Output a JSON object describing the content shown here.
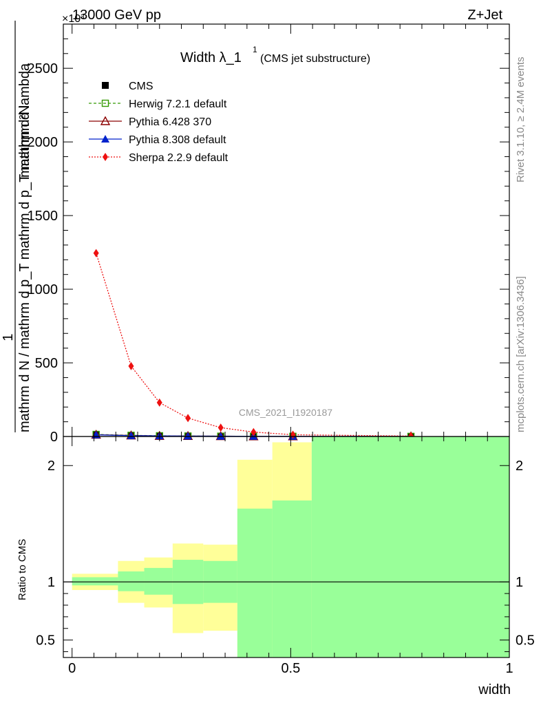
{
  "header": {
    "left": "13000 GeV pp",
    "right": "Z+Jet",
    "exponent": "×10³"
  },
  "side_text": {
    "rivet": "Rivet 3.1.10, ≥ 2.4M events",
    "mcplots": "mcplots.cern.ch [arXiv:1306.3436]"
  },
  "watermark": "CMS_2021_I1920187",
  "chart_data": [
    {
      "type": "line",
      "title": "Width λ_1",
      "title_sup": "1",
      "subtitle": "(CMS jet substructure)",
      "xlabel": "",
      "ylabel_numerator": "1",
      "ylabel_denominator": "mathrm d N / mathrm d p_T mathrm d p_T mathrm d lambda",
      "ylabel_top": "mathrm d²N",
      "xlim": [
        -0.02,
        1.0
      ],
      "ylim": [
        0,
        2800
      ],
      "y_ticks": [
        0,
        500,
        1000,
        1500,
        2000,
        2500
      ],
      "y_tick_labels": [
        "0",
        "500",
        "1000",
        "1500",
        "2000",
        "2500"
      ],
      "legend_position": "top-left",
      "series": [
        {
          "name": "CMS",
          "color": "#000000",
          "marker": "square-filled",
          "x": [
            0.055,
            0.135,
            0.2,
            0.265,
            0.34,
            0.415,
            0.505,
            0.775
          ],
          "y": [
            10,
            6,
            4,
            3,
            2,
            2,
            1,
            0.5
          ]
        },
        {
          "name": "Herwig 7.2.1 default",
          "color": "#339900",
          "marker": "square-open",
          "dash": "4,3",
          "x": [
            0.055,
            0.135,
            0.2,
            0.265,
            0.34,
            0.415,
            0.505,
            0.775
          ],
          "y": [
            14,
            8,
            5,
            3,
            2,
            1,
            1,
            0.5
          ]
        },
        {
          "name": "Pythia 6.428 370",
          "color": "#8b0000",
          "marker": "triangle-open",
          "dash": "",
          "x": [
            0.055,
            0.135,
            0.2,
            0.265,
            0.34,
            0.415,
            0.505,
            0.775
          ],
          "y": [
            12,
            7,
            4,
            3,
            2,
            1,
            1,
            0.5
          ]
        },
        {
          "name": "Pythia 8.308 default",
          "color": "#0022cc",
          "marker": "triangle-filled",
          "dash": "",
          "x": [
            0.055,
            0.135,
            0.2,
            0.265,
            0.34,
            0.415,
            0.505,
            0.775
          ],
          "y": [
            11,
            6,
            4,
            3,
            2,
            1,
            1,
            0.5
          ]
        },
        {
          "name": "Sherpa 2.2.9 default",
          "color": "#ee1111",
          "marker": "diamond-filled",
          "dash": "2,2",
          "x": [
            0.055,
            0.135,
            0.2,
            0.265,
            0.34,
            0.415,
            0.505,
            0.775
          ],
          "y": [
            1245,
            478,
            230,
            125,
            60,
            30,
            12,
            3
          ]
        }
      ]
    },
    {
      "type": "area",
      "ylabel": "Ratio to CMS",
      "xlabel": "width",
      "xlim": [
        -0.02,
        1.0
      ],
      "ylim": [
        0.35,
        2.25
      ],
      "x_ticks": [
        0,
        0.5,
        1
      ],
      "x_tick_labels": [
        "0",
        "0.5",
        "1"
      ],
      "y_ticks": [
        0.5,
        1,
        2
      ],
      "y_tick_labels": [
        "0.5",
        "1",
        "2"
      ],
      "reference_line": 1,
      "bins": [
        {
          "x_lo": 0.0,
          "x_hi": 0.105,
          "yellow_lo": 0.93,
          "yellow_hi": 1.07,
          "green_lo": 0.97,
          "green_hi": 1.04
        },
        {
          "x_lo": 0.105,
          "x_hi": 0.165,
          "yellow_lo": 0.82,
          "yellow_hi": 1.18,
          "green_lo": 0.92,
          "green_hi": 1.09
        },
        {
          "x_lo": 0.165,
          "x_hi": 0.23,
          "yellow_lo": 0.78,
          "yellow_hi": 1.21,
          "green_lo": 0.89,
          "green_hi": 1.12
        },
        {
          "x_lo": 0.23,
          "x_hi": 0.3,
          "yellow_lo": 0.56,
          "yellow_hi": 1.33,
          "green_lo": 0.81,
          "green_hi": 1.19
        },
        {
          "x_lo": 0.3,
          "x_hi": 0.378,
          "yellow_lo": 0.58,
          "yellow_hi": 1.32,
          "green_lo": 0.82,
          "green_hi": 1.18
        },
        {
          "x_lo": 0.378,
          "x_hi": 0.458,
          "yellow_lo": 0.35,
          "yellow_hi": 2.05,
          "green_lo": 0.35,
          "green_hi": 1.63
        },
        {
          "x_lo": 0.458,
          "x_hi": 0.548,
          "yellow_lo": 0.35,
          "yellow_hi": 2.2,
          "green_lo": 0.35,
          "green_hi": 1.7
        },
        {
          "x_lo": 0.548,
          "x_hi": 1.0,
          "yellow_lo": 0.35,
          "yellow_hi": 2.25,
          "green_lo": 0.35,
          "green_hi": 2.25
        }
      ],
      "colors": {
        "yellow": "#ffff99",
        "green": "#99ff99"
      }
    }
  ]
}
